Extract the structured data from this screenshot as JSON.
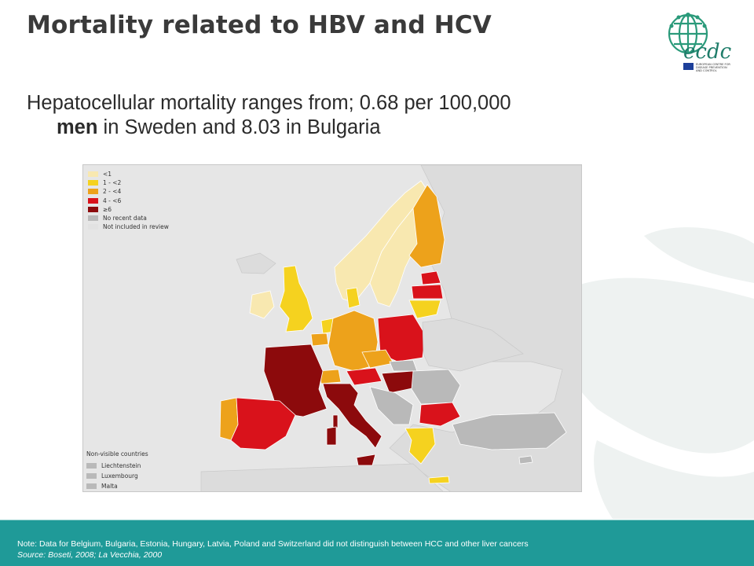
{
  "slide": {
    "title": "Mortality related to HBV and HCV",
    "body_line1": "Hepatocellular mortality ranges from; 0.68 per 100,000",
    "body_line2_bold": "men",
    "body_line2_rest": " in Sweden and 8.03 in Bulgaria"
  },
  "logo": {
    "wordmark": "ecdc",
    "text_line1": "EUROPEAN CENTRE FOR",
    "text_line2": "DISEASE PREVENTION",
    "text_line3": "AND CONTROL"
  },
  "map": {
    "legend": [
      {
        "label": "<1",
        "color": "#f8e8b0"
      },
      {
        "label": "1 - <2",
        "color": "#f5d21f"
      },
      {
        "label": "2 - <4",
        "color": "#eda21b"
      },
      {
        "label": "4 - <6",
        "color": "#d9121b"
      },
      {
        "label": "≥6",
        "color": "#8c0a0c"
      },
      {
        "label": "No recent data",
        "color": "#b9b9b9"
      },
      {
        "label": "Not included in review",
        "color": "#e2e2e2"
      }
    ],
    "nonvisible_title": "Non-visible countries",
    "nonvisible": [
      {
        "label": "Liechtenstein",
        "color": "#b9b9b9"
      },
      {
        "label": "Luxembourg",
        "color": "#b9b9b9"
      },
      {
        "label": "Malta",
        "color": "#b9b9b9"
      }
    ]
  },
  "footer": {
    "note": "Note: Data for Belgium, Bulgaria, Estonia, Hungary, Latvia, Poland and Switzerland did not distinguish between HCC  and other liver cancers",
    "source": "Source: Boseti, 2008; La Vecchia, 2000"
  },
  "colors": {
    "footer_band": "#1f9a98",
    "title_text": "#3a3a3a"
  }
}
